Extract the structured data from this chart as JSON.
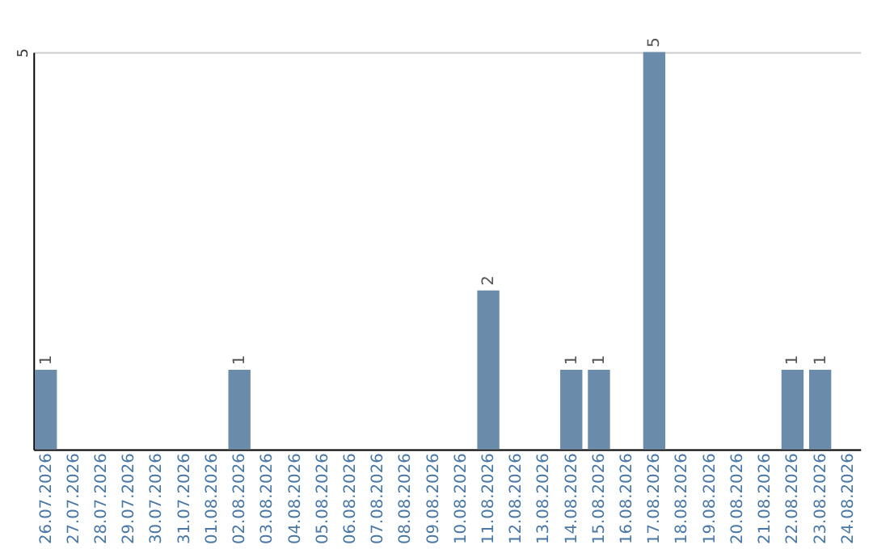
{
  "chart_data": {
    "type": "bar",
    "categories": [
      "26.07.2026",
      "27.07.2026",
      "28.07.2026",
      "29.07.2026",
      "30.07.2026",
      "31.07.2026",
      "01.08.2026",
      "02.08.2026",
      "03.08.2026",
      "04.08.2026",
      "05.08.2026",
      "06.08.2026",
      "07.08.2026",
      "08.08.2026",
      "09.08.2026",
      "10.08.2026",
      "11.08.2026",
      "12.08.2026",
      "13.08.2026",
      "14.08.2026",
      "15.08.2026",
      "16.08.2026",
      "17.08.2026",
      "18.08.2026",
      "19.08.2026",
      "20.08.2026",
      "21.08.2026",
      "22.08.2026",
      "23.08.2026",
      "24.08.2026"
    ],
    "values": [
      1,
      0,
      0,
      0,
      0,
      0,
      0,
      1,
      0,
      0,
      0,
      0,
      0,
      0,
      0,
      0,
      2,
      0,
      0,
      1,
      1,
      0,
      5,
      0,
      0,
      0,
      0,
      1,
      1,
      0
    ],
    "value_labels": [
      "1",
      null,
      null,
      null,
      null,
      null,
      null,
      "1",
      null,
      null,
      null,
      null,
      null,
      null,
      null,
      null,
      "2",
      null,
      null,
      "1",
      "1",
      null,
      "5",
      null,
      null,
      null,
      null,
      "1",
      "1",
      null
    ],
    "color": "#6a8caa",
    "ylim": [
      0,
      5
    ],
    "yticks": [
      {
        "value": 0,
        "label": null
      },
      5
    ],
    "grid": "y"
  }
}
